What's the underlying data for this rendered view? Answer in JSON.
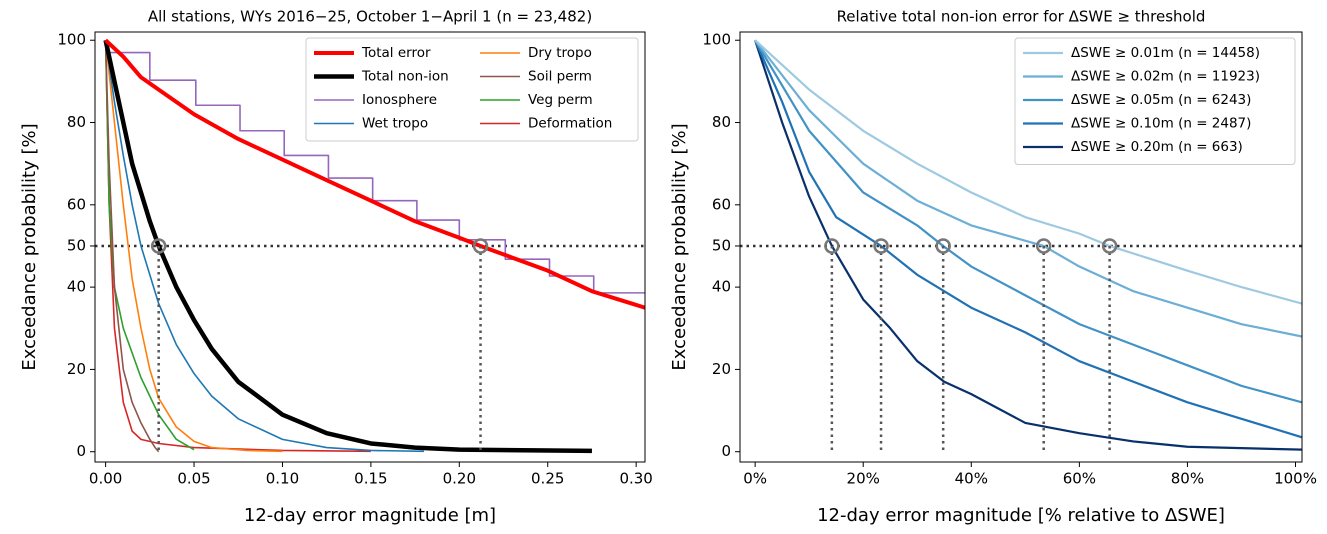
{
  "chart_data": [
    {
      "type": "line",
      "title": "All stations, WYs 2016−25, October 1−April 1 (n = 23,482)",
      "x_label": "12-day error magnitude [m]",
      "y_label": "Exceedance probability [%]",
      "xlim": [
        -0.006,
        0.305
      ],
      "ylim": [
        -2.5,
        102
      ],
      "xticks": [
        {
          "value": 0,
          "label": "0.00"
        },
        0.05,
        {
          "value": 0.1,
          "label": "0.10"
        },
        0.15,
        {
          "value": 0.2,
          "label": "0.20"
        },
        0.25,
        {
          "value": 0.3,
          "label": "0.30"
        }
      ],
      "yticks": [
        0,
        20,
        40,
        50,
        60,
        80,
        100
      ],
      "legend": "upper right",
      "legend_columns": 2,
      "series": [
        {
          "name": "Total error",
          "color": "#ff0000",
          "linewidth": 4,
          "x": [
            0,
            0.01,
            0.02,
            0.03,
            0.05,
            0.075,
            0.1,
            0.125,
            0.15,
            0.175,
            0.2,
            0.212,
            0.25,
            0.275,
            0.305
          ],
          "values": [
            100,
            96,
            91,
            88,
            82,
            76,
            71,
            66,
            61,
            56,
            52,
            50,
            44,
            39,
            35
          ]
        },
        {
          "name": "Total non-ion",
          "color": "#000000",
          "linewidth": 4.5,
          "x": [
            0,
            0.005,
            0.01,
            0.015,
            0.02,
            0.025,
            0.03,
            0.04,
            0.05,
            0.06,
            0.075,
            0.1,
            0.125,
            0.15,
            0.175,
            0.2,
            0.275
          ],
          "values": [
            100,
            90,
            80,
            70,
            63,
            56,
            50,
            40,
            32,
            25,
            17,
            9,
            4.5,
            2,
            1,
            0.5,
            0.2
          ]
        },
        {
          "name": "Ionosphere",
          "color": "#9467bd",
          "linewidth": 1.6,
          "step": true,
          "x": [
            0,
            0.025,
            0.051,
            0.076,
            0.101,
            0.126,
            0.151,
            0.176,
            0.2,
            0.226,
            0.251,
            0.276
          ],
          "values": [
            97,
            90.3,
            84.2,
            78,
            72,
            66.5,
            61,
            56.3,
            51.5,
            46.8,
            42.7,
            38.6
          ]
        },
        {
          "name": "Wet tropo",
          "color": "#1f77b4",
          "linewidth": 1.6,
          "x": [
            0,
            0.005,
            0.01,
            0.015,
            0.02,
            0.03,
            0.04,
            0.05,
            0.06,
            0.075,
            0.1,
            0.125,
            0.15,
            0.18
          ],
          "values": [
            100,
            85,
            72,
            60,
            50,
            36,
            26,
            19,
            13.5,
            8,
            3,
            1,
            0.3,
            0.1
          ]
        },
        {
          "name": "Dry tropo",
          "color": "#ff7f0e",
          "linewidth": 1.6,
          "x": [
            0,
            0.005,
            0.01,
            0.015,
            0.02,
            0.025,
            0.03,
            0.04,
            0.05,
            0.06,
            0.08,
            0.1
          ],
          "values": [
            100,
            80,
            60,
            42,
            30,
            20,
            13,
            6,
            2.5,
            1,
            0.3,
            0.1
          ]
        },
        {
          "name": "Soil perm",
          "color": "#8c564b",
          "linewidth": 1.6,
          "x": [
            0,
            0.002,
            0.005,
            0.01,
            0.015,
            0.02,
            0.025,
            0.028,
            0.03
          ],
          "values": [
            100,
            70,
            40,
            20,
            12,
            7,
            3,
            1,
            0
          ]
        },
        {
          "name": "Veg perm",
          "color": "#2ca02c",
          "linewidth": 1.6,
          "x": [
            0,
            0.002,
            0.005,
            0.01,
            0.02,
            0.03,
            0.04,
            0.05
          ],
          "values": [
            100,
            60,
            40,
            30,
            18,
            9,
            3,
            0.5
          ]
        },
        {
          "name": "Deformation",
          "color": "#d62728",
          "linewidth": 1.6,
          "x": [
            0,
            0.002,
            0.005,
            0.01,
            0.015,
            0.02,
            0.03,
            0.05,
            0.1,
            0.15
          ],
          "values": [
            100,
            60,
            30,
            12,
            5,
            3,
            2,
            1,
            0.3,
            0.1
          ]
        }
      ],
      "reference_line": 50,
      "reference_points": {
        "x": [
          0.03,
          0.212
        ],
        "y": [
          50,
          50
        ]
      }
    },
    {
      "type": "line",
      "title": "Relative total non-ion error for ΔSWE ≥ threshold",
      "x_label": "12-day error magnitude [% relative to ΔSWE]",
      "y_label": "Exceedance probability [%]",
      "xlim": [
        -2.8,
        101.2
      ],
      "ylim": [
        -2.5,
        102
      ],
      "xticks": [
        {
          "value": 0,
          "label": "0%"
        },
        {
          "value": 20,
          "label": "20%"
        },
        {
          "value": 40,
          "label": "40%"
        },
        {
          "value": 60,
          "label": "60%"
        },
        {
          "value": 80,
          "label": "80%"
        },
        {
          "value": 100,
          "label": "100%"
        }
      ],
      "yticks": [
        0,
        20,
        40,
        50,
        60,
        80,
        100
      ],
      "legend": "upper right",
      "legend_columns": 1,
      "series": [
        {
          "name": "ΔSWE ≥ 0.01m (n = 14458)",
          "color": "#9ecae1",
          "linewidth": 2.2,
          "x": [
            0,
            10,
            20,
            30,
            40,
            50,
            60,
            65.6,
            80,
            90,
            101.2
          ],
          "values": [
            100,
            88,
            78,
            70,
            63,
            57,
            53,
            50,
            44,
            40,
            36
          ]
        },
        {
          "name": "ΔSWE ≥ 0.02m (n = 11923)",
          "color": "#6baed6",
          "linewidth": 2.2,
          "x": [
            0,
            10,
            20,
            30,
            40,
            53.4,
            60,
            70,
            80,
            90,
            101.2
          ],
          "values": [
            100,
            83,
            70,
            61,
            55,
            50,
            45,
            39,
            35,
            31,
            28
          ]
        },
        {
          "name": "ΔSWE ≥ 0.05m (n = 6243)",
          "color": "#4292c6",
          "linewidth": 2.2,
          "x": [
            0,
            10,
            20,
            30,
            34.8,
            40,
            50,
            60,
            70,
            80,
            90,
            101.2
          ],
          "values": [
            100,
            78,
            63,
            55,
            50,
            45,
            38,
            31,
            26,
            21,
            16,
            12
          ]
        },
        {
          "name": "ΔSWE ≥ 0.10m (n = 2487)",
          "color": "#2171b5",
          "linewidth": 2.2,
          "x": [
            0,
            5,
            10,
            15,
            23.3,
            30,
            40,
            50,
            60,
            70,
            80,
            90,
            101.2
          ],
          "values": [
            100,
            85,
            68,
            57,
            50,
            43,
            35,
            29,
            22,
            17,
            12,
            8,
            3.5
          ]
        },
        {
          "name": "ΔSWE ≥ 0.20m (n = 663)",
          "color": "#08306b",
          "linewidth": 2.2,
          "x": [
            0,
            5,
            10,
            14.2,
            20,
            25,
            30,
            35,
            40,
            50,
            60,
            70,
            80,
            101.2
          ],
          "values": [
            100,
            80,
            62,
            50,
            37,
            30,
            22,
            17,
            14,
            7,
            4.5,
            2.5,
            1.2,
            0.5
          ]
        }
      ],
      "reference_line": 50,
      "reference_points": {
        "x": [
          14.2,
          23.3,
          34.8,
          53.4,
          65.6
        ],
        "y": [
          50,
          50,
          50,
          50,
          50
        ]
      }
    }
  ]
}
